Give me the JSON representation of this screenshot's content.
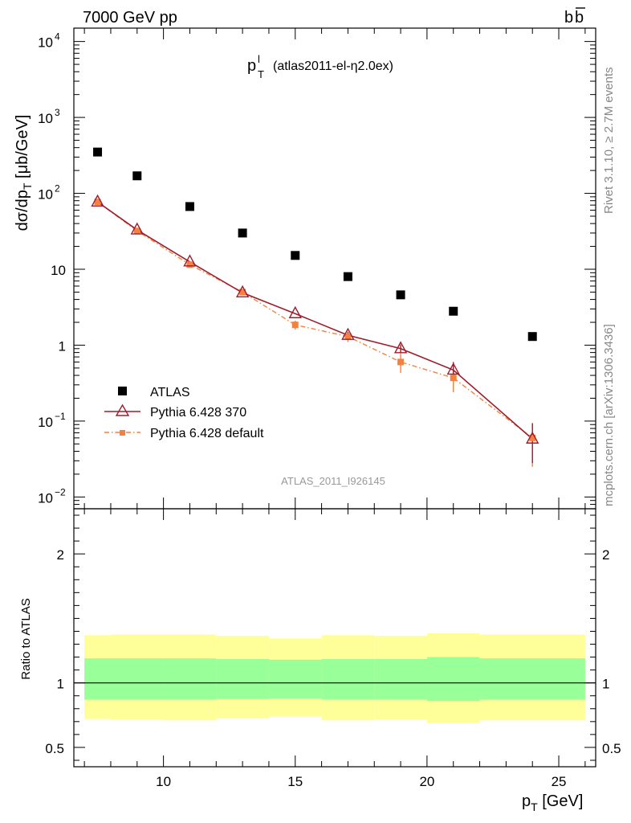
{
  "header": {
    "left": "7000 GeV pp",
    "right_b1": "b",
    "right_b2": "b"
  },
  "side_text": {
    "rivet": "Rivet 3.1.10, ≥ 2.7M events",
    "mcplots": "mcplots.cern.ch [arXiv:1306.3436]"
  },
  "plot_title": {
    "main": "p",
    "sup": "l",
    "sub": "T",
    "detail": "(atlas2011-el-η2.0ex)"
  },
  "watermark": "ATLAS_2011_I926145",
  "axes": {
    "ylabel_main": "dσ/dp_T [μb/GeV]",
    "ylabel_ratio": "Ratio to ATLAS",
    "xlabel": "p_T [GeV]"
  },
  "colors": {
    "atlas": "#000000",
    "pythia370": "#a01c2c",
    "pythia_default": "#f5813c",
    "band_inner": "#99ff99",
    "band_outer": "#ffff99"
  },
  "chart_data": [
    {
      "type": "scatter",
      "title": "p_T^l (atlas2011-el-η2.0ex)",
      "xlabel": "p_T [GeV]",
      "ylabel": "dσ/dp_T [μb/GeV]",
      "yscale": "log",
      "xlim": [
        6.6,
        26.4
      ],
      "ylim": [
        0.007,
        15000
      ],
      "x_ticks": [
        10,
        15,
        20,
        25
      ],
      "y_ticks": [
        {
          "value": 0.01,
          "base": "10",
          "exp": "−2"
        },
        {
          "value": 0.1,
          "base": "10",
          "exp": "−1"
        },
        {
          "value": 1,
          "base": "1",
          "exp": ""
        },
        {
          "value": 10,
          "base": "10",
          "exp": ""
        },
        {
          "value": 100,
          "base": "10",
          "exp": "2"
        },
        {
          "value": 1000,
          "base": "10",
          "exp": "3"
        },
        {
          "value": 10000,
          "base": "10",
          "exp": "4"
        }
      ],
      "legend_position": "bottom-left",
      "series": [
        {
          "name": "ATLAS",
          "style": "square-markers",
          "x": [
            7.5,
            9,
            11,
            13,
            15,
            17,
            19,
            21,
            24
          ],
          "y": [
            350,
            170,
            67,
            30,
            15.2,
            8.0,
            4.6,
            2.8,
            1.3
          ]
        },
        {
          "name": "Pythia 6.428 370",
          "style": "line-open-triangles",
          "x": [
            7.5,
            9,
            11,
            13,
            15,
            17,
            19,
            21,
            24
          ],
          "y": [
            77,
            33,
            12.5,
            4.9,
            2.6,
            1.35,
            0.9,
            0.47,
            0.058
          ],
          "err_lo": [
            0,
            0,
            0,
            0,
            0,
            0.15,
            0.12,
            0.1,
            0.03
          ],
          "err_hi": [
            0,
            0,
            0,
            0,
            0,
            0.15,
            0.12,
            0.13,
            0.035
          ]
        },
        {
          "name": "Pythia 6.428 default",
          "style": "dashdot-filled-squares",
          "x": [
            7.5,
            9,
            11,
            13,
            15,
            17,
            19,
            21,
            24
          ],
          "y": [
            77,
            32,
            11.5,
            5.0,
            1.85,
            1.3,
            0.6,
            0.37,
            0.06
          ],
          "err_lo": [
            0,
            0,
            0,
            0,
            0.25,
            0.2,
            0.17,
            0.13,
            0.035
          ],
          "err_hi": [
            0,
            0,
            0,
            0,
            0.25,
            0.2,
            0.17,
            0.13,
            0.035
          ]
        }
      ]
    },
    {
      "type": "area",
      "title": "Ratio to ATLAS",
      "xlabel": "p_T [GeV]",
      "ylabel": "Ratio to ATLAS",
      "xlim": [
        6.6,
        26.4
      ],
      "ylim": [
        0.35,
        2.35
      ],
      "y_ticks": [
        0.5,
        1,
        2
      ],
      "reference_line": 1,
      "bins": [
        {
          "lo": 7,
          "hi": 8,
          "inner": [
            0.87,
            1.19
          ],
          "outer": [
            0.72,
            1.37
          ]
        },
        {
          "lo": 8,
          "hi": 10,
          "inner": [
            0.87,
            1.19
          ],
          "outer": [
            0.715,
            1.375
          ]
        },
        {
          "lo": 10,
          "hi": 12,
          "inner": [
            0.87,
            1.19
          ],
          "outer": [
            0.71,
            1.375
          ]
        },
        {
          "lo": 12,
          "hi": 14,
          "inner": [
            0.875,
            1.185
          ],
          "outer": [
            0.725,
            1.365
          ]
        },
        {
          "lo": 14,
          "hi": 16,
          "inner": [
            0.88,
            1.18
          ],
          "outer": [
            0.74,
            1.345
          ]
        },
        {
          "lo": 16,
          "hi": 18,
          "inner": [
            0.87,
            1.185
          ],
          "outer": [
            0.71,
            1.37
          ]
        },
        {
          "lo": 18,
          "hi": 20,
          "inner": [
            0.87,
            1.185
          ],
          "outer": [
            0.715,
            1.365
          ]
        },
        {
          "lo": 20,
          "hi": 22,
          "inner": [
            0.86,
            1.2
          ],
          "outer": [
            0.69,
            1.385
          ]
        },
        {
          "lo": 22,
          "hi": 26,
          "inner": [
            0.87,
            1.19
          ],
          "outer": [
            0.71,
            1.375
          ]
        }
      ]
    }
  ]
}
